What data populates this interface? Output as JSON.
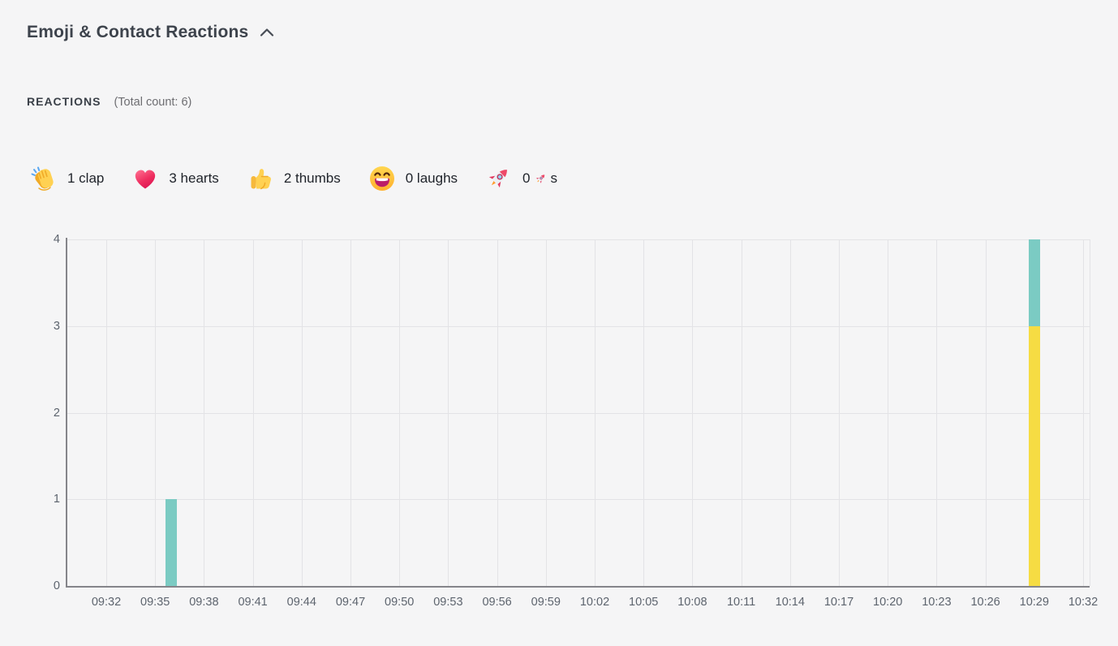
{
  "header": {
    "title": "Emoji & Contact Reactions",
    "collapse_icon": "chevron-up-icon"
  },
  "reactions": {
    "section_label": "REACTIONS",
    "total_count_text": "(Total count: 6)",
    "items": [
      {
        "icon": "clap-emoji",
        "parts": [
          {
            "t": "1 clap"
          }
        ]
      },
      {
        "icon": "heart-emoji",
        "parts": [
          {
            "t": "3 hearts"
          }
        ]
      },
      {
        "icon": "thumbs-up-emoji",
        "parts": [
          {
            "t": "2 thumbs"
          }
        ]
      },
      {
        "icon": "laugh-emoji",
        "parts": [
          {
            "t": "0 laughs"
          }
        ]
      },
      {
        "icon": "rocket-emoji",
        "parts": [
          {
            "t": "0 "
          },
          {
            "icon": "rocket-emoji"
          },
          {
            "t": "s"
          }
        ]
      }
    ]
  },
  "chart_data": {
    "type": "bar",
    "stacked": true,
    "title": "",
    "xlabel": "",
    "ylabel": "",
    "grid": true,
    "legend": "none",
    "x_ticks": [
      "09:32",
      "09:35",
      "09:38",
      "09:41",
      "09:44",
      "09:47",
      "09:50",
      "09:53",
      "09:56",
      "09:59",
      "10:02",
      "10:05",
      "10:08",
      "10:11",
      "10:14",
      "10:17",
      "10:20",
      "10:23",
      "10:26",
      "10:29",
      "10:32"
    ],
    "y_ticks": [
      0,
      1,
      2,
      3,
      4
    ],
    "ylim": [
      0,
      4
    ],
    "series": [
      {
        "name": "teal",
        "color": "#7bcbc3",
        "points": [
          {
            "x": "09:36",
            "y": 1
          },
          {
            "x": "10:29",
            "y": 1
          }
        ]
      },
      {
        "name": "yellow",
        "color": "#f6dc43",
        "points": [
          {
            "x": "10:29",
            "y": 3
          }
        ]
      }
    ],
    "bars": [
      {
        "time": "09:36",
        "segments": [
          {
            "series": "teal",
            "value": 1
          }
        ]
      },
      {
        "time": "10:29",
        "segments": [
          {
            "series": "yellow",
            "value": 3
          },
          {
            "series": "teal",
            "value": 1
          }
        ]
      }
    ]
  },
  "colors": {
    "background": "#f5f5f6",
    "teal_bar": "#7bcbc3",
    "yellow_bar": "#f6dc43",
    "gridline": "#e3e3e6",
    "axis": "#85858a",
    "tick_text": "#5d646e",
    "title_text": "#3d434c"
  }
}
